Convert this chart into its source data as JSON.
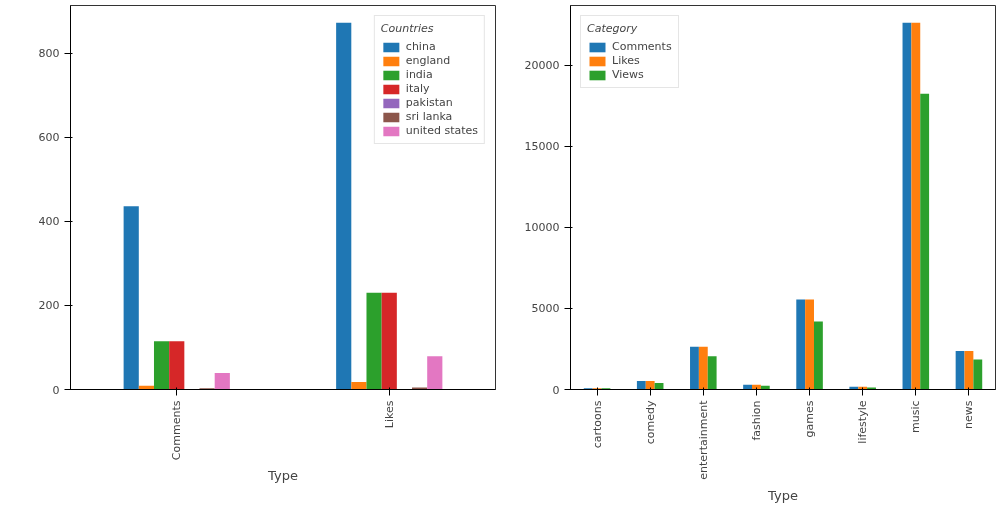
{
  "chart_data": [
    {
      "type": "bar",
      "xlabel": "Type",
      "categories": [
        "Comments",
        "Likes"
      ],
      "legend_title": "Countries",
      "legend": "top right",
      "grid": false,
      "ylim": [
        0,
        914
      ],
      "yticks": [
        0,
        200,
        400,
        600,
        800
      ],
      "series": [
        {
          "name": "china",
          "color": "#1f77b4",
          "values": [
            436,
            873
          ]
        },
        {
          "name": "england",
          "color": "#ff7f0e",
          "values": [
            9,
            18
          ]
        },
        {
          "name": "india",
          "color": "#2ca02c",
          "values": [
            115,
            230
          ]
        },
        {
          "name": "italy",
          "color": "#d62728",
          "values": [
            115,
            230
          ]
        },
        {
          "name": "pakistan",
          "color": "#9467bd",
          "values": [
            0,
            0
          ]
        },
        {
          "name": "sri lanka",
          "color": "#8c564b",
          "values": [
            3,
            5
          ]
        },
        {
          "name": "united states",
          "color": "#e377c2",
          "values": [
            39,
            79
          ]
        }
      ]
    },
    {
      "type": "bar",
      "xlabel": "Type",
      "categories": [
        "cartoons",
        "comedy",
        "entertainment",
        "fashion",
        "games",
        "lifestyle",
        "music",
        "news"
      ],
      "legend_title": "Category",
      "legend": "top left",
      "grid": false,
      "ylim": [
        0,
        23700
      ],
      "yticks": [
        0,
        5000,
        10000,
        15000,
        20000
      ],
      "series": [
        {
          "name": "Comments",
          "color": "#1f77b4",
          "values": [
            80,
            520,
            2640,
            290,
            5550,
            170,
            22640,
            2370
          ]
        },
        {
          "name": "Likes",
          "color": "#ff7f0e",
          "values": [
            80,
            520,
            2640,
            290,
            5550,
            170,
            22640,
            2370
          ]
        },
        {
          "name": "Views",
          "color": "#2ca02c",
          "values": [
            70,
            400,
            2050,
            230,
            4200,
            120,
            18250,
            1850
          ]
        }
      ]
    }
  ]
}
